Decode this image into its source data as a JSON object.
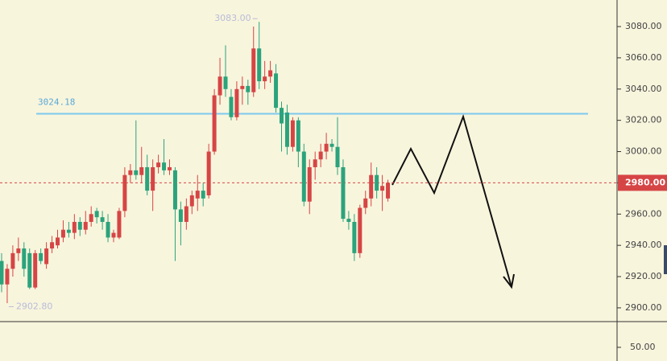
{
  "chart_data": {
    "type": "candlestick",
    "up_color": "#d64545",
    "down_color": "#2ba37c",
    "open": [
      2930,
      2915,
      2925,
      2935,
      2938,
      2935,
      2913,
      2935,
      2928,
      2938,
      2940,
      2945,
      2950,
      2948,
      2955,
      2950,
      2955,
      2962,
      2958,
      2955,
      2945,
      2945,
      2962,
      2985,
      2988,
      2985,
      2990,
      2975,
      2990,
      2993,
      2988,
      2988,
      2963,
      2955,
      2965,
      2970,
      2975,
      2972,
      3000,
      3036,
      3048,
      3035,
      3022,
      3040,
      3042,
      3038,
      3066,
      3045,
      3048,
      3050,
      3028,
      3025,
      3003,
      3020,
      3000,
      2968,
      2990,
      2995,
      3000,
      3005,
      3003,
      2990,
      2957,
      2955,
      2935,
      2964,
      2970,
      2985,
      2975,
      2970
    ],
    "high": [
      2935,
      2928,
      2940,
      2945,
      2942,
      2938,
      2937,
      2938,
      2942,
      2946,
      2950,
      2956,
      2955,
      2960,
      2958,
      2962,
      2965,
      2964,
      2962,
      2960,
      2950,
      2964,
      2990,
      2992,
      3020,
      3003,
      2998,
      2995,
      2998,
      3008,
      2995,
      2990,
      2968,
      2970,
      2975,
      2985,
      2980,
      3005,
      3040,
      3060,
      3068,
      3040,
      3045,
      3048,
      3046,
      3080,
      3083,
      3058,
      3058,
      3056,
      3032,
      3030,
      3022,
      3022,
      3005,
      2995,
      3000,
      3005,
      3012,
      3008,
      3022,
      2995,
      2962,
      2960,
      2966,
      2975,
      2993,
      2990,
      2985,
      2982
    ],
    "low": [
      2910,
      2903,
      2920,
      2930,
      2920,
      2912,
      2912,
      2928,
      2925,
      2935,
      2938,
      2942,
      2945,
      2944,
      2946,
      2947,
      2952,
      2954,
      2950,
      2942,
      2942,
      2944,
      2958,
      2980,
      2982,
      2980,
      2972,
      2962,
      2986,
      2985,
      2985,
      2930,
      2940,
      2950,
      2960,
      2962,
      2965,
      2970,
      2998,
      3030,
      3035,
      3020,
      3020,
      3030,
      3030,
      3035,
      3040,
      3040,
      3044,
      3025,
      3000,
      2998,
      3000,
      2990,
      2965,
      2960,
      2982,
      2990,
      2995,
      3000,
      2985,
      2955,
      2950,
      2930,
      2932,
      2960,
      2965,
      2970,
      2962,
      2968
    ],
    "close": [
      2915,
      2925,
      2935,
      2938,
      2925,
      2913,
      2935,
      2930,
      2938,
      2942,
      2945,
      2950,
      2948,
      2955,
      2950,
      2955,
      2960,
      2958,
      2955,
      2945,
      2948,
      2962,
      2985,
      2988,
      2985,
      2990,
      2975,
      2990,
      2993,
      2988,
      2990,
      2963,
      2955,
      2965,
      2972,
      2975,
      2970,
      3000,
      3036,
      3048,
      3040,
      3022,
      3040,
      3042,
      3038,
      3066,
      3045,
      3048,
      3052,
      3028,
      3018,
      3003,
      3020,
      3000,
      2968,
      2990,
      2995,
      3000,
      3005,
      3003,
      2990,
      2957,
      2955,
      2935,
      2964,
      2970,
      2985,
      2975,
      2978,
      2980
    ],
    "ylim": [
      2891.2,
      3097.0
    ],
    "yticks": [
      {
        "value": 2900,
        "label": "2900.00"
      },
      {
        "value": 2920,
        "label": "2920.00"
      },
      {
        "value": 2940,
        "label": "2940.00"
      },
      {
        "value": 2960,
        "label": "2960.00"
      },
      {
        "value": 2980,
        "label": "2980.00"
      },
      {
        "value": 3000,
        "label": "3000.00"
      },
      {
        "value": 3020,
        "label": "3020.00"
      },
      {
        "value": 3040,
        "label": "3040.00"
      },
      {
        "value": 3060,
        "label": "3060.00"
      },
      {
        "value": 3080,
        "label": "3080.00"
      }
    ],
    "horizontal_line": {
      "value": 3024.18,
      "label": "3024.18",
      "color": "#7ec8ef"
    },
    "high_marker": {
      "value": 3083,
      "label": "3083.00"
    },
    "low_marker": {
      "value": 2902.8,
      "label": "2902.80"
    },
    "current_price": {
      "value": 2980,
      "label": "2980.00",
      "color": "#d64545"
    },
    "lower_panel": {
      "ylim": [
        0,
        141
      ],
      "yticks": [
        {
          "value": 50,
          "label": "50.00"
        }
      ]
    }
  }
}
